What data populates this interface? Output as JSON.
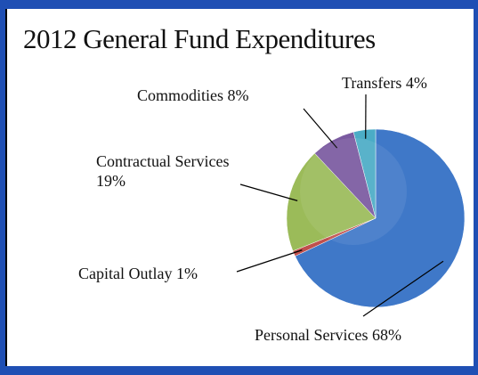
{
  "chart_data": {
    "type": "pie",
    "title": "2012 General Fund Expenditures",
    "categories": [
      "Personal Services",
      "Capital Outlay",
      "Contractual Services",
      "Commodities",
      "Transfers"
    ],
    "values": [
      68,
      1,
      19,
      8,
      4
    ],
    "value_labels": [
      "68%",
      "1%",
      "19%",
      "8%",
      "4%"
    ],
    "colors": [
      "#3f78c8",
      "#c0504d",
      "#9bbb59",
      "#7a5aa0",
      "#4bacc6"
    ]
  }
}
